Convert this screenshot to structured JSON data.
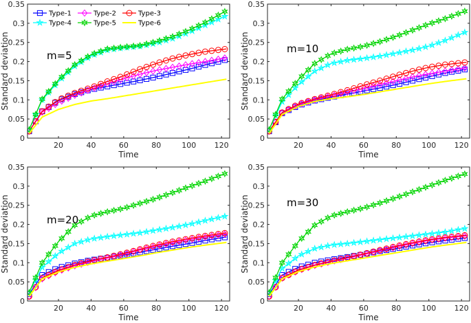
{
  "figure": {
    "xlabel": "Time",
    "ylabel": "Standard deviation"
  },
  "series_meta": [
    {
      "name": "Type-1",
      "color": "#0000ff",
      "marker": "square"
    },
    {
      "name": "Type-2",
      "color": "#ff00ff",
      "marker": "diamond"
    },
    {
      "name": "Type-3",
      "color": "#ff0000",
      "marker": "circle"
    },
    {
      "name": "Type-4",
      "color": "#00ffff",
      "marker": "star"
    },
    {
      "name": "Type-5",
      "color": "#00d400",
      "marker": "hexagram"
    },
    {
      "name": "Type-6",
      "color": "#ffff00",
      "marker": "none"
    }
  ],
  "chart_data": [
    {
      "type": "line",
      "annotation": "m=5",
      "xlabel": "Time",
      "ylabel": "Standard deviation",
      "xlim": [
        1,
        125
      ],
      "ylim": [
        0,
        0.35
      ],
      "xticks": [
        20,
        40,
        60,
        80,
        100,
        120
      ],
      "yticks": [
        0,
        0.05,
        0.1,
        0.15,
        0.2,
        0.25,
        0.3,
        0.35
      ],
      "ytick_labels": [
        "0",
        "0.05",
        "0.1",
        "0.15",
        "0.2",
        "0.25",
        "0.3",
        "0.35"
      ],
      "legend": true,
      "x": [
        2,
        10,
        20,
        30,
        40,
        50,
        60,
        70,
        80,
        90,
        100,
        110,
        123
      ],
      "series": [
        {
          "name": "Type-1",
          "values": [
            0.018,
            0.07,
            0.098,
            0.115,
            0.127,
            0.135,
            0.143,
            0.151,
            0.16,
            0.17,
            0.18,
            0.191,
            0.205
          ]
        },
        {
          "name": "Type-2",
          "values": [
            0.018,
            0.068,
            0.093,
            0.112,
            0.128,
            0.142,
            0.155,
            0.167,
            0.177,
            0.185,
            0.193,
            0.2,
            0.21
          ]
        },
        {
          "name": "Type-3",
          "values": [
            0.018,
            0.07,
            0.1,
            0.118,
            0.132,
            0.148,
            0.163,
            0.18,
            0.195,
            0.208,
            0.218,
            0.226,
            0.233
          ]
        },
        {
          "name": "Type-4",
          "values": [
            0.022,
            0.1,
            0.148,
            0.188,
            0.215,
            0.23,
            0.236,
            0.24,
            0.248,
            0.26,
            0.276,
            0.295,
            0.32
          ]
        },
        {
          "name": "Type-5",
          "values": [
            0.022,
            0.102,
            0.152,
            0.192,
            0.218,
            0.233,
            0.238,
            0.242,
            0.252,
            0.265,
            0.282,
            0.302,
            0.333
          ]
        },
        {
          "name": "Type-6",
          "values": [
            0.012,
            0.055,
            0.075,
            0.088,
            0.097,
            0.103,
            0.11,
            0.117,
            0.124,
            0.131,
            0.138,
            0.145,
            0.154
          ]
        }
      ]
    },
    {
      "type": "line",
      "annotation": "m=10",
      "xlabel": "Time",
      "ylabel": "Standard deviation",
      "xlim": [
        1,
        125
      ],
      "ylim": [
        0,
        0.35
      ],
      "xticks": [
        20,
        40,
        60,
        80,
        100,
        120
      ],
      "yticks": [
        0,
        0.05,
        0.1,
        0.15,
        0.2,
        0.25,
        0.3,
        0.35
      ],
      "ytick_labels": [
        "0",
        "0.05",
        "0.1",
        "0.15",
        "0.2",
        "0.25",
        "0.3",
        "0.35"
      ],
      "legend": false,
      "x": [
        2,
        10,
        20,
        30,
        40,
        50,
        60,
        70,
        80,
        90,
        100,
        110,
        123
      ],
      "series": [
        {
          "name": "Type-1",
          "values": [
            0.018,
            0.065,
            0.085,
            0.098,
            0.107,
            0.115,
            0.123,
            0.131,
            0.14,
            0.15,
            0.16,
            0.17,
            0.18
          ]
        },
        {
          "name": "Type-2",
          "values": [
            0.018,
            0.066,
            0.087,
            0.1,
            0.11,
            0.12,
            0.13,
            0.14,
            0.15,
            0.16,
            0.168,
            0.175,
            0.184
          ]
        },
        {
          "name": "Type-3",
          "values": [
            0.018,
            0.067,
            0.089,
            0.102,
            0.113,
            0.125,
            0.138,
            0.15,
            0.163,
            0.175,
            0.185,
            0.192,
            0.198
          ]
        },
        {
          "name": "Type-4",
          "values": [
            0.022,
            0.095,
            0.14,
            0.175,
            0.195,
            0.203,
            0.208,
            0.214,
            0.222,
            0.23,
            0.24,
            0.255,
            0.278
          ]
        },
        {
          "name": "Type-5",
          "values": [
            0.022,
            0.102,
            0.153,
            0.195,
            0.22,
            0.232,
            0.24,
            0.252,
            0.266,
            0.282,
            0.298,
            0.312,
            0.333
          ]
        },
        {
          "name": "Type-6",
          "values": [
            0.012,
            0.062,
            0.083,
            0.096,
            0.103,
            0.108,
            0.114,
            0.121,
            0.128,
            0.135,
            0.142,
            0.148,
            0.155
          ]
        }
      ]
    },
    {
      "type": "line",
      "annotation": "m=20",
      "xlabel": "Time",
      "ylabel": "Standard deviation",
      "xlim": [
        1,
        125
      ],
      "ylim": [
        0,
        0.35
      ],
      "xticks": [
        20,
        40,
        60,
        80,
        100,
        120
      ],
      "yticks": [
        0,
        0.05,
        0.1,
        0.15,
        0.2,
        0.25,
        0.3,
        0.35
      ],
      "ytick_labels": [
        "0",
        "0.05",
        "0.1",
        "0.15",
        "0.2",
        "0.25",
        "0.3",
        "0.35"
      ],
      "legend": false,
      "x": [
        2,
        10,
        20,
        30,
        40,
        50,
        60,
        70,
        80,
        90,
        100,
        110,
        123
      ],
      "series": [
        {
          "name": "Type-1",
          "values": [
            0.018,
            0.068,
            0.087,
            0.098,
            0.107,
            0.113,
            0.12,
            0.127,
            0.135,
            0.143,
            0.15,
            0.158,
            0.167
          ]
        },
        {
          "name": "Type-2",
          "values": [
            0.012,
            0.058,
            0.078,
            0.092,
            0.103,
            0.112,
            0.122,
            0.133,
            0.143,
            0.152,
            0.16,
            0.167,
            0.175
          ]
        },
        {
          "name": "Type-3",
          "values": [
            0.012,
            0.06,
            0.08,
            0.094,
            0.105,
            0.114,
            0.124,
            0.135,
            0.146,
            0.155,
            0.163,
            0.17,
            0.178
          ]
        },
        {
          "name": "Type-4",
          "values": [
            0.022,
            0.088,
            0.125,
            0.15,
            0.162,
            0.168,
            0.173,
            0.178,
            0.185,
            0.192,
            0.2,
            0.21,
            0.222
          ]
        },
        {
          "name": "Type-5",
          "values": [
            0.022,
            0.1,
            0.155,
            0.198,
            0.222,
            0.233,
            0.242,
            0.255,
            0.268,
            0.283,
            0.298,
            0.313,
            0.334
          ]
        },
        {
          "name": "Type-6",
          "values": [
            0.012,
            0.058,
            0.076,
            0.088,
            0.097,
            0.104,
            0.111,
            0.118,
            0.126,
            0.133,
            0.14,
            0.146,
            0.153
          ]
        }
      ]
    },
    {
      "type": "line",
      "annotation": "m=30",
      "xlabel": "Time",
      "ylabel": "Standard deviation",
      "xlim": [
        1,
        125
      ],
      "ylim": [
        0,
        0.35
      ],
      "xticks": [
        20,
        40,
        60,
        80,
        100,
        120
      ],
      "yticks": [
        0,
        0.05,
        0.1,
        0.15,
        0.2,
        0.25,
        0.3,
        0.35
      ],
      "ytick_labels": [
        "0",
        "0.05",
        "0.1",
        "0.15",
        "0.2",
        "0.25",
        "0.3",
        "0.35"
      ],
      "legend": false,
      "x": [
        2,
        10,
        20,
        30,
        40,
        50,
        60,
        70,
        80,
        90,
        100,
        110,
        123
      ],
      "series": [
        {
          "name": "Type-1",
          "values": [
            0.018,
            0.068,
            0.088,
            0.1,
            0.108,
            0.115,
            0.122,
            0.13,
            0.137,
            0.145,
            0.152,
            0.158,
            0.165
          ]
        },
        {
          "name": "Type-2",
          "values": [
            0.012,
            0.06,
            0.08,
            0.093,
            0.103,
            0.112,
            0.121,
            0.131,
            0.141,
            0.15,
            0.158,
            0.164,
            0.17
          ]
        },
        {
          "name": "Type-3",
          "values": [
            0.012,
            0.06,
            0.081,
            0.094,
            0.104,
            0.113,
            0.123,
            0.133,
            0.143,
            0.152,
            0.16,
            0.166,
            0.172
          ]
        },
        {
          "name": "Type-4",
          "values": [
            0.022,
            0.085,
            0.118,
            0.137,
            0.146,
            0.15,
            0.155,
            0.16,
            0.165,
            0.17,
            0.175,
            0.18,
            0.19
          ]
        },
        {
          "name": "Type-5",
          "values": [
            0.022,
            0.1,
            0.155,
            0.198,
            0.222,
            0.233,
            0.243,
            0.256,
            0.27,
            0.285,
            0.3,
            0.315,
            0.333
          ]
        },
        {
          "name": "Type-6",
          "values": [
            0.012,
            0.058,
            0.077,
            0.089,
            0.098,
            0.105,
            0.112,
            0.119,
            0.126,
            0.133,
            0.14,
            0.146,
            0.153
          ]
        }
      ]
    }
  ]
}
